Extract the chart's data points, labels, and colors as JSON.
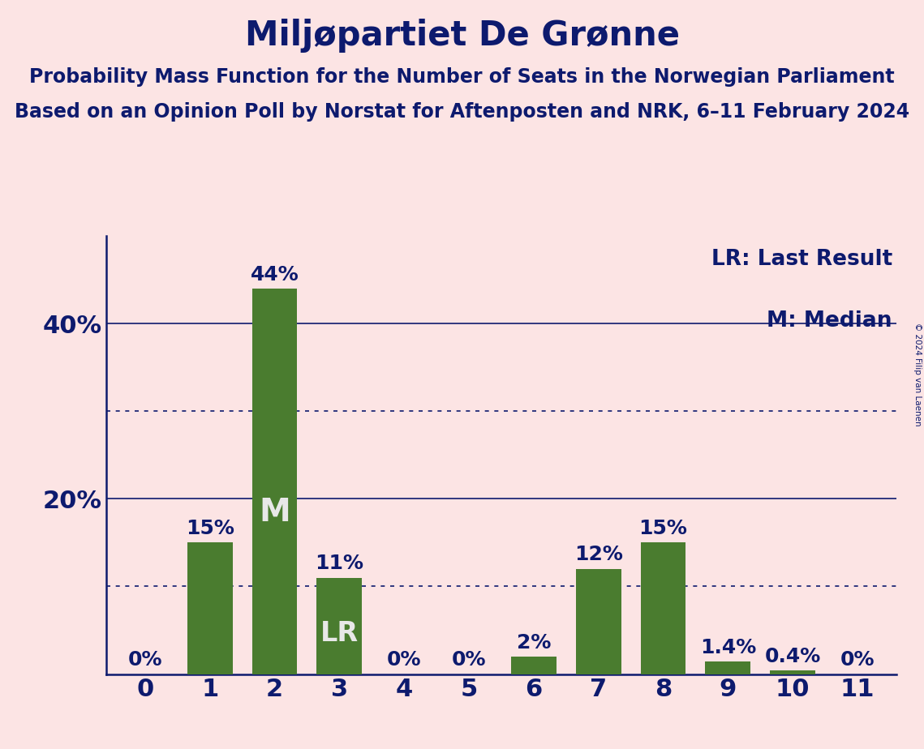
{
  "title": "Miljøpartiet De Grønne",
  "subtitle1": "Probability Mass Function for the Number of Seats in the Norwegian Parliament",
  "subtitle2": "Based on an Opinion Poll by Norstat for Aftenposten and NRK, 6–11 February 2024",
  "copyright": "© 2024 Filip van Laenen",
  "categories": [
    0,
    1,
    2,
    3,
    4,
    5,
    6,
    7,
    8,
    9,
    10,
    11
  ],
  "values": [
    0.0,
    15.0,
    44.0,
    11.0,
    0.0,
    0.0,
    2.0,
    12.0,
    15.0,
    1.4,
    0.4,
    0.0
  ],
  "bar_color": "#4a7c2f",
  "bg_color": "#fce4e4",
  "text_color": "#0d1a6e",
  "bar_label_color_inside": "#e8e8e8",
  "yticks": [
    20,
    40
  ],
  "ylim": [
    0,
    50
  ],
  "dotted_lines": [
    10,
    30
  ],
  "solid_lines": [
    20,
    40
  ],
  "median_bar": 2,
  "lr_bar": 3,
  "legend_lr": "LR: Last Result",
  "legend_m": "M: Median",
  "title_fontsize": 30,
  "subtitle_fontsize": 17,
  "axis_fontsize": 22,
  "bar_label_fontsize": 18,
  "inside_label_fontsize": 24,
  "legend_fontsize": 19
}
